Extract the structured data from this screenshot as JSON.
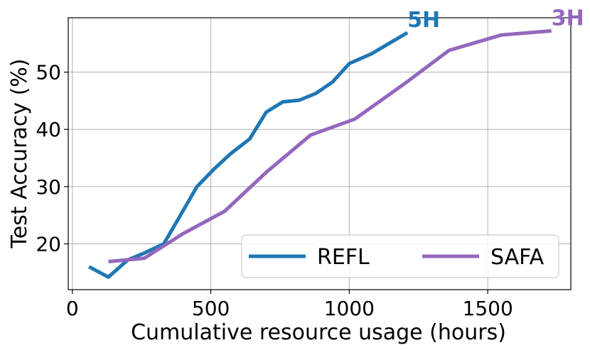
{
  "chart_data": {
    "type": "line",
    "title": "",
    "xlabel": "Cumulative resource usage (hours)",
    "ylabel": "Test Accuracy (%)",
    "xlim": [
      -15,
      1800
    ],
    "ylim": [
      12,
      59.5
    ],
    "xticks": [
      0,
      500,
      1000,
      1500
    ],
    "yticks": [
      20,
      30,
      40,
      50
    ],
    "grid": true,
    "legend": {
      "placement": "bottom-right",
      "columns": 2
    },
    "series": [
      {
        "name": "REFL",
        "color": "#1f77b4",
        "end_label": "5H",
        "x": [
          60,
          130,
          200,
          260,
          330,
          390,
          450,
          510,
          570,
          640,
          700,
          760,
          820,
          880,
          940,
          1000,
          1080,
          1150,
          1210
        ],
        "y": [
          16,
          14.2,
          17.2,
          18.4,
          20,
          25,
          30,
          33,
          35.7,
          38.3,
          43,
          44.8,
          45.1,
          46.3,
          48.3,
          51.5,
          53.2,
          55.2,
          56.9
        ]
      },
      {
        "name": "SAFA",
        "color": "#9467bd",
        "end_label": "3H",
        "x": [
          130,
          260,
          400,
          550,
          700,
          860,
          1020,
          1200,
          1360,
          1550,
          1730
        ],
        "y": [
          16.9,
          17.5,
          21.8,
          25.7,
          32.5,
          39,
          41.8,
          48,
          53.8,
          56.5,
          57.2
        ]
      }
    ]
  }
}
